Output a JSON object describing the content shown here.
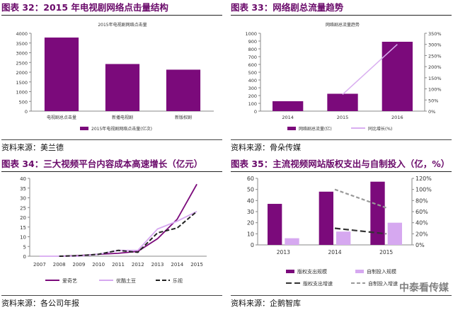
{
  "charts": [
    {
      "figure_title": "图表 32：2015 年电视剧网络点击量结构",
      "source": "资料来源：美兰德",
      "chart_title": "2015年电视剧网络点击量",
      "legend": [
        "2015年电视剧网络点击量(亿次)"
      ],
      "color": "#7b0a7b"
    },
    {
      "figure_title": "图表 33：网络剧总流量趋势",
      "source": "资料来源：骨朵传媒",
      "chart_title": "网络剧总流量趋势",
      "legend": [
        "网络剧总流量(亿)",
        "同比增长(%)"
      ],
      "colors": [
        "#7b0a7b",
        "#d9aef0"
      ]
    },
    {
      "figure_title": "图表 34：三大视频平台内容成本高速增长（亿元）",
      "source": "资料来源：各公司年报",
      "legend": [
        "爱奇艺",
        "优酷土豆",
        "乐视"
      ],
      "colors": [
        "#7b0a7b",
        "#d6a8f0",
        "#222222"
      ]
    },
    {
      "figure_title": "图表 35：主流视频网站版权支出与自制投入（亿，%）",
      "source": "资料来源：企鹅智库",
      "legend": [
        "版权支出规模",
        "自制投入规模",
        "版权支出增速",
        "自制投入增速"
      ],
      "colors": [
        "#7b0a7b",
        "#d6a8f0",
        "#333333",
        "#999999"
      ]
    }
  ],
  "watermark": "中泰看传媒",
  "chart_data": [
    {
      "type": "bar",
      "title": "2015年电视剧网络点击量",
      "categories": [
        "电视剧总点击量",
        "新播电视剧",
        "新版权剧"
      ],
      "series": [
        {
          "name": "2015年电视剧网络点击量(亿次)",
          "values": [
            3780,
            2420,
            2130
          ]
        }
      ],
      "ylim": [
        0,
        4000
      ],
      "yticks": [
        0,
        500,
        1000,
        1500,
        2000,
        2500,
        3000,
        3500,
        4000
      ],
      "legend_position": "bottom"
    },
    {
      "type": "bar",
      "title": "网络剧总流量趋势",
      "categories": [
        "2014",
        "2015",
        "2016"
      ],
      "series": [
        {
          "name": "网络剧总流量(亿)",
          "type": "bar",
          "axis": "left",
          "values": [
            127,
            223,
            891
          ]
        },
        {
          "name": "同比增长(%)",
          "type": "line",
          "axis": "right",
          "values": [
            null,
            75,
            300
          ]
        }
      ],
      "ylim": [
        0,
        1000
      ],
      "yticks": [
        0,
        100,
        200,
        300,
        400,
        500,
        600,
        700,
        800,
        900,
        1000
      ],
      "y2lim": [
        0,
        350
      ],
      "y2ticks": [
        "0%",
        "50%",
        "100%",
        "150%",
        "200%",
        "250%",
        "300%",
        "350%"
      ],
      "legend_position": "bottom"
    },
    {
      "type": "line",
      "categories": [
        "2007",
        "2008",
        "2009",
        "2010",
        "2011",
        "2012",
        "2013",
        "2014",
        "2015"
      ],
      "series": [
        {
          "name": "爱奇艺",
          "values": [
            null,
            0,
            0.3,
            1,
            1.5,
            2.5,
            9,
            19,
            37
          ]
        },
        {
          "name": "优酷土豆",
          "values": [
            0,
            0,
            0,
            1,
            3,
            3,
            14,
            18,
            23
          ]
        },
        {
          "name": "乐视",
          "values": [
            null,
            0,
            0.3,
            1,
            3,
            2,
            12,
            14.5,
            23
          ]
        }
      ],
      "ylim": [
        0,
        40
      ],
      "yticks": [
        0,
        5,
        10,
        15,
        20,
        25,
        30,
        35,
        40
      ],
      "legend_position": "bottom"
    },
    {
      "type": "bar",
      "categories": [
        "2013",
        "2014",
        "2015"
      ],
      "series": [
        {
          "name": "版权支出规模",
          "type": "bar",
          "axis": "left",
          "values": [
            37,
            48,
            57
          ]
        },
        {
          "name": "自制投入规模",
          "type": "bar",
          "axis": "left",
          "values": [
            6,
            12,
            20
          ]
        },
        {
          "name": "版权支出增速",
          "type": "line",
          "axis": "right",
          "values": [
            null,
            30,
            20
          ]
        },
        {
          "name": "自制投入增速",
          "type": "line",
          "axis": "right",
          "values": [
            null,
            100,
            67
          ]
        }
      ],
      "ylim": [
        0,
        60
      ],
      "yticks": [
        0,
        10,
        20,
        30,
        40,
        50,
        60
      ],
      "y2lim": [
        0,
        120
      ],
      "y2ticks": [
        "0%",
        "20%",
        "40%",
        "60%",
        "80%",
        "100%",
        "120%"
      ],
      "legend_position": "bottom"
    }
  ]
}
